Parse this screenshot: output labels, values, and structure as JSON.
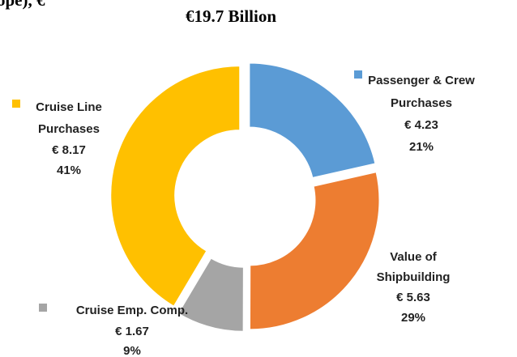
{
  "chart_data": {
    "type": "donut",
    "title_fragment": "ope), €",
    "subtitle": "€19.7 Billion",
    "series": [
      {
        "label_lines": [
          "Passenger & Crew",
          "Purchases"
        ],
        "value": 4.23,
        "value_label": "€ 4.23",
        "percent": 21,
        "percent_label": "21%",
        "color": "#5b9bd5"
      },
      {
        "label_lines": [
          "Value of",
          "Shipbuilding"
        ],
        "value": 5.63,
        "value_label": "€ 5.63",
        "percent": 29,
        "percent_label": "29%",
        "color": "#ed7d31"
      },
      {
        "label_lines": [
          "Cruise Emp. Comp."
        ],
        "value": 1.67,
        "value_label": "€ 1.67",
        "percent": 9,
        "percent_label": "9%",
        "color": "#a5a5a5"
      },
      {
        "label_lines": [
          "Cruise Line",
          "Purchases"
        ],
        "value": 8.17,
        "value_label": "€ 8.17",
        "percent": 41,
        "percent_label": "41%",
        "color": "#ffc000"
      }
    ]
  }
}
